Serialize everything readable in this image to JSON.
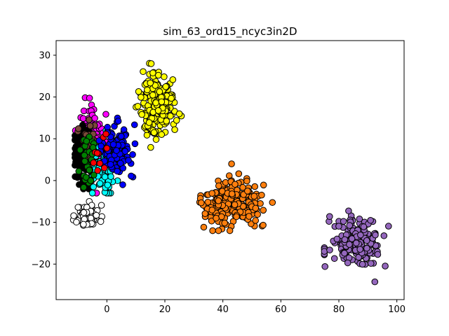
{
  "chart_data": {
    "type": "scatter",
    "title": "sim_63_ord15_ncyc3in2D",
    "xlabel": "",
    "ylabel": "",
    "xlim": [
      -17.5,
      102.5
    ],
    "ylim": [
      -28.5,
      33.5
    ],
    "xticks": [
      0,
      20,
      40,
      60,
      80,
      100
    ],
    "yticks": [
      -20,
      -10,
      0,
      10,
      20,
      30
    ],
    "grid": false,
    "legend": "none",
    "marker_edge_color": "#000000",
    "clusters": [
      {
        "color": "#ffffff",
        "center": [
          -6.5,
          -8.5
        ],
        "spread": [
          2.0,
          1.3
        ],
        "count": 90,
        "seed": 11,
        "range_x": [
          -12,
          0
        ],
        "range_y": [
          -12,
          -5
        ]
      },
      {
        "color": "#ff00ff",
        "center": [
          -5,
          10
        ],
        "spread": [
          2.2,
          5.0
        ],
        "count": 80,
        "seed": 12,
        "range_x": [
          -11,
          0
        ],
        "range_y": [
          -3,
          23
        ]
      },
      {
        "color": "#000000",
        "center": [
          -8.5,
          6
        ],
        "spread": [
          1.5,
          3.5
        ],
        "count": 110,
        "seed": 13,
        "range_x": [
          -11,
          -3
        ],
        "range_y": [
          -2,
          14
        ]
      },
      {
        "color": "#7b4a3a",
        "center": [
          -5,
          8
        ],
        "spread": [
          2.0,
          3.0
        ],
        "count": 40,
        "seed": 14,
        "range_x": [
          -10,
          3
        ],
        "range_y": [
          0,
          19
        ]
      },
      {
        "color": "#00ffff",
        "center": [
          -1,
          3
        ],
        "spread": [
          2.0,
          3.5
        ],
        "count": 80,
        "seed": 15,
        "range_x": [
          -5,
          11
        ],
        "range_y": [
          -3,
          12
        ]
      },
      {
        "color": "#008000",
        "center": [
          -6.5,
          4
        ],
        "spread": [
          1.5,
          3.5
        ],
        "count": 30,
        "seed": 16,
        "range_x": [
          -10,
          0
        ],
        "range_y": [
          -2,
          12
        ]
      },
      {
        "color": "#0000ff",
        "center": [
          3,
          7
        ],
        "spread": [
          2.5,
          3.0
        ],
        "count": 120,
        "seed": 17,
        "range_x": [
          -4,
          11
        ],
        "range_y": [
          -1,
          15
        ]
      },
      {
        "color": "#ff0000",
        "center": [
          -3,
          6
        ],
        "spread": [
          1.5,
          3.0
        ],
        "count": 10,
        "seed": 18,
        "range_x": [
          -6,
          0
        ],
        "range_y": [
          2,
          12
        ]
      },
      {
        "color": "#ffff00",
        "center": [
          17.5,
          17.5
        ],
        "spread": [
          3.0,
          4.0
        ],
        "count": 200,
        "seed": 19,
        "range_x": [
          10,
          26
        ],
        "range_y": [
          7.5,
          31
        ]
      },
      {
        "color": "#ff7f0e",
        "center": [
          43,
          -5
        ],
        "spread": [
          5.0,
          3.2
        ],
        "count": 220,
        "seed": 20,
        "range_x": [
          32,
          61
        ],
        "range_y": [
          -12,
          4
        ]
      },
      {
        "color": "#9467bd",
        "center": [
          86,
          -15
        ],
        "spread": [
          4.5,
          3.0
        ],
        "count": 170,
        "seed": 21,
        "range_x": [
          75,
          98
        ],
        "range_y": [
          -26,
          -3
        ]
      }
    ]
  }
}
